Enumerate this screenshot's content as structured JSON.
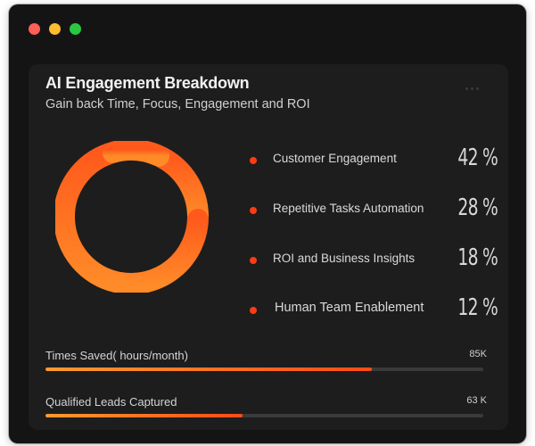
{
  "card": {
    "title": "AI Engagement Breakdown",
    "subtitle": "Gain back Time, Focus, Engagement and ROI"
  },
  "breakdown": [
    {
      "label": "Customer Engagement",
      "value": "42 %",
      "percent": 42
    },
    {
      "label": "Repetitive Tasks Automation",
      "value": "28 %",
      "percent": 28
    },
    {
      "label": "ROI and Business Insights",
      "value": "18 %",
      "percent": 18
    },
    {
      "label": "Human Team Enablement",
      "value": "12 %",
      "percent": 12
    }
  ],
  "metrics": [
    {
      "label": "Times Saved( hours/month)",
      "value": "85K",
      "fill_fraction": 0.745
    },
    {
      "label": "Qualified Leads Captured",
      "value": "63 K",
      "fill_fraction": 0.45
    }
  ],
  "colors": {
    "accent": "#ff4a17",
    "accent_light": "#ff9a2e",
    "legend_dot": "#ff3b12"
  },
  "icons": {
    "window_controls": [
      "close-dot",
      "minimize-dot",
      "maximize-dot"
    ],
    "menu": "more-dots-icon"
  }
}
